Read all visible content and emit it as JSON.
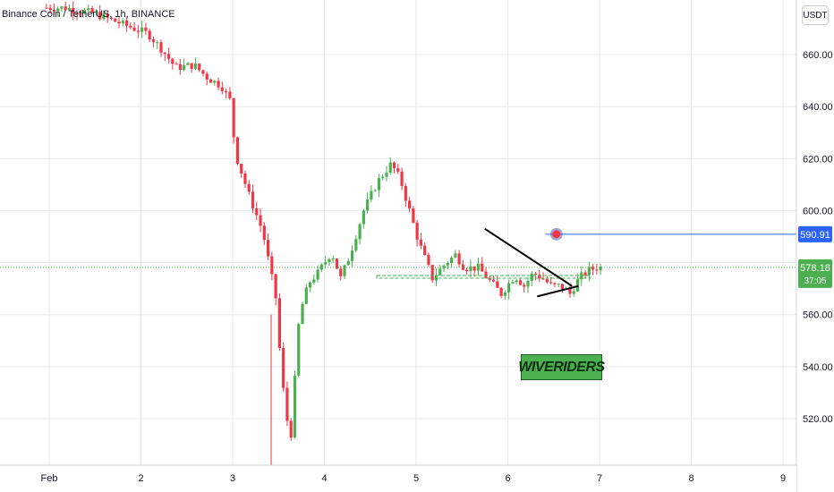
{
  "header": {
    "title": "Binance Coin / TetherUS, 1h, BINANCE"
  },
  "price_axis": {
    "unit_button": "USDT"
  },
  "watermark": {
    "text": "WIVERIDERS"
  },
  "colors": {
    "up": "#26a69a",
    "down": "#ef5350",
    "up_candle": "#4caf50",
    "down_candle": "#f23645",
    "alert_line": "#2962ff",
    "current_price_bg": "#4caf50",
    "dotted_price_line": "#4caf50",
    "trend_lines": "#000000"
  },
  "chart_data": {
    "type": "candlestick",
    "title": "Binance Coin / TetherUS, 1h, BINANCE",
    "y_axis": {
      "ticks": [
        520,
        540,
        560,
        580,
        600,
        620,
        640,
        660
      ],
      "tick_labels": [
        "520.00",
        "540.00",
        "560.00",
        "580.00",
        "600.00",
        "620.00",
        "640.00",
        "660.00"
      ],
      "range": [
        500,
        680
      ]
    },
    "x_axis": {
      "tick_labels": [
        "Feb",
        "2",
        "3",
        "4",
        "5",
        "6",
        "7",
        "8",
        "9"
      ]
    },
    "alert_price": {
      "value": 590.91,
      "label": "590.91"
    },
    "current_price": {
      "value": 578.18,
      "label": "578.18",
      "countdown": "37:05"
    },
    "resistance_level": 574.5,
    "annotations": [
      {
        "type": "triangle-upper",
        "from": [
          4.75,
          593
        ],
        "to": [
          5.7,
          571
        ]
      },
      {
        "type": "triangle-lower",
        "from": [
          5.32,
          567
        ],
        "to": [
          5.77,
          571
        ]
      }
    ],
    "price_path": [
      [
        -0.05,
        678
      ],
      [
        0.2,
        678
      ],
      [
        0.5,
        676
      ],
      [
        0.8,
        672
      ],
      [
        1.1,
        668
      ],
      [
        1.25,
        662
      ],
      [
        1.4,
        655
      ],
      [
        1.6,
        656
      ],
      [
        1.75,
        651
      ],
      [
        1.9,
        648
      ],
      [
        2.0,
        642
      ],
      [
        2.05,
        622
      ],
      [
        2.2,
        606
      ],
      [
        2.35,
        592
      ],
      [
        2.5,
        565
      ],
      [
        2.55,
        538
      ],
      [
        2.65,
        510
      ],
      [
        2.75,
        560
      ],
      [
        2.85,
        572
      ],
      [
        2.95,
        576
      ],
      [
        3.1,
        584
      ],
      [
        3.2,
        574
      ],
      [
        3.3,
        583
      ],
      [
        3.45,
        600
      ],
      [
        3.6,
        611
      ],
      [
        3.75,
        618
      ],
      [
        3.85,
        612
      ],
      [
        3.95,
        600
      ],
      [
        4.05,
        588
      ],
      [
        4.2,
        574
      ],
      [
        4.35,
        580
      ],
      [
        4.45,
        583
      ],
      [
        4.55,
        578
      ],
      [
        4.7,
        578
      ],
      [
        4.85,
        572
      ],
      [
        4.95,
        568
      ],
      [
        5.1,
        575
      ],
      [
        5.2,
        571
      ],
      [
        5.3,
        576
      ],
      [
        5.4,
        574
      ],
      [
        5.5,
        571
      ],
      [
        5.6,
        571
      ],
      [
        5.7,
        568
      ],
      [
        5.8,
        574
      ],
      [
        5.9,
        577
      ],
      [
        6.0,
        578.2
      ]
    ]
  }
}
